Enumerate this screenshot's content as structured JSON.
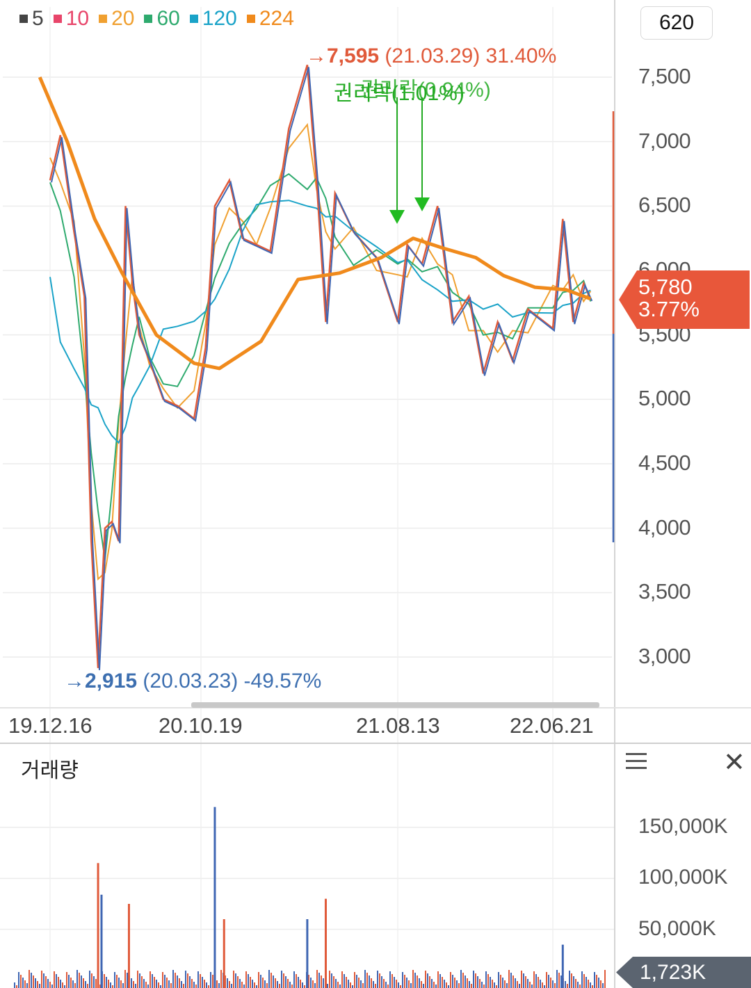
{
  "legend": [
    {
      "label": "5",
      "color": "#444444"
    },
    {
      "label": "10",
      "color": "#e8456a"
    },
    {
      "label": "20",
      "color": "#f0a030"
    },
    {
      "label": "60",
      "color": "#2eaa6e"
    },
    {
      "label": "120",
      "color": "#1aa3c8"
    },
    {
      "label": "224",
      "color": "#f08a1c"
    }
  ],
  "period_box": "620",
  "current_price": {
    "value": "5,780",
    "change": "3.77%"
  },
  "annotations": {
    "high": {
      "arrow": "→",
      "value": "7,595",
      "detail": "(21.03.29) 31.40%"
    },
    "low": {
      "arrow": "→",
      "value": "2,915",
      "detail": "(20.03.23) -49.57%"
    },
    "rights_1": "권리락(1.01%)",
    "rights_2": "권리락(0.94%)"
  },
  "volume_panel": {
    "title": "거래량",
    "current": "1,723K"
  },
  "chart_data": [
    {
      "type": "line",
      "title": "",
      "x_ticks": [
        "19.12.16",
        "20.10.19",
        "21.08.13",
        "22.06.21"
      ],
      "y_ticks": [
        "7,500",
        "7,000",
        "6,500",
        "6,000",
        "5,500",
        "5,000",
        "4,500",
        "4,000",
        "3,500",
        "3,000"
      ],
      "ylim": [
        2700,
        7900
      ],
      "price_series": [
        [
          "19.12.16",
          6700
        ],
        [
          "20.01.06",
          7050
        ],
        [
          "20.02.03",
          6300
        ],
        [
          "20.02.24",
          5800
        ],
        [
          "20.03.09",
          3900
        ],
        [
          "20.03.23",
          2915
        ],
        [
          "20.04.06",
          4000
        ],
        [
          "20.04.20",
          4050
        ],
        [
          "20.05.04",
          3900
        ],
        [
          "20.05.18",
          6500
        ],
        [
          "20.06.01",
          5900
        ],
        [
          "20.06.15",
          5500
        ],
        [
          "20.07.06",
          5300
        ],
        [
          "20.08.03",
          5000
        ],
        [
          "20.09.01",
          4950
        ],
        [
          "20.10.05",
          4850
        ],
        [
          "20.10.26",
          5400
        ],
        [
          "20.11.09",
          6500
        ],
        [
          "20.12.01",
          6700
        ],
        [
          "20.12.21",
          6250
        ],
        [
          "21.01.11",
          6200
        ],
        [
          "21.02.01",
          6150
        ],
        [
          "21.03.01",
          7100
        ],
        [
          "21.03.29",
          7595
        ],
        [
          "21.04.12",
          6700
        ],
        [
          "21.04.26",
          5600
        ],
        [
          "21.05.10",
          6600
        ],
        [
          "21.06.07",
          6300
        ],
        [
          "21.07.12",
          6100
        ],
        [
          "21.08.13",
          5600
        ],
        [
          "21.09.01",
          6200
        ],
        [
          "21.10.01",
          6050
        ],
        [
          "21.11.01",
          6500
        ],
        [
          "21.12.01",
          5600
        ],
        [
          "22.01.03",
          5800
        ],
        [
          "22.02.01",
          5200
        ],
        [
          "22.03.02",
          5600
        ],
        [
          "22.04.01",
          5300
        ],
        [
          "22.05.02",
          5700
        ],
        [
          "22.06.21",
          5550
        ],
        [
          "22.07.11",
          6400
        ],
        [
          "22.08.01",
          5600
        ],
        [
          "22.08.22",
          5900
        ],
        [
          "22.09.05",
          5780
        ]
      ],
      "ma224_series": [
        [
          "19.11.25",
          7500
        ],
        [
          "20.01.20",
          7000
        ],
        [
          "20.03.16",
          6400
        ],
        [
          "20.05.11",
          5980
        ],
        [
          "20.07.20",
          5500
        ],
        [
          "20.10.05",
          5280
        ],
        [
          "20.11.16",
          5240
        ],
        [
          "21.01.18",
          5450
        ],
        [
          "21.03.15",
          5930
        ],
        [
          "21.05.17",
          5980
        ],
        [
          "21.07.19",
          6100
        ],
        [
          "21.09.13",
          6250
        ],
        [
          "21.11.15",
          6170
        ],
        [
          "22.01.17",
          6100
        ],
        [
          "22.03.14",
          5960
        ],
        [
          "22.05.16",
          5870
        ],
        [
          "22.07.18",
          5850
        ],
        [
          "22.09.05",
          5780
        ]
      ]
    },
    {
      "type": "bar",
      "title": "거래량",
      "y_ticks": [
        "150,000K",
        "100,000K",
        "50,000K"
      ],
      "ylim": [
        0,
        170000
      ],
      "unit": "K",
      "bars": [
        [
          "20.03.23",
          115000
        ],
        [
          "20.03.30",
          84000
        ],
        [
          "20.05.25",
          75000
        ],
        [
          "20.11.09",
          170000
        ],
        [
          "20.11.23",
          60000
        ],
        [
          "21.03.29",
          60000
        ],
        [
          "21.04.26",
          80000
        ],
        [
          "22.07.11",
          35000
        ]
      ]
    }
  ]
}
